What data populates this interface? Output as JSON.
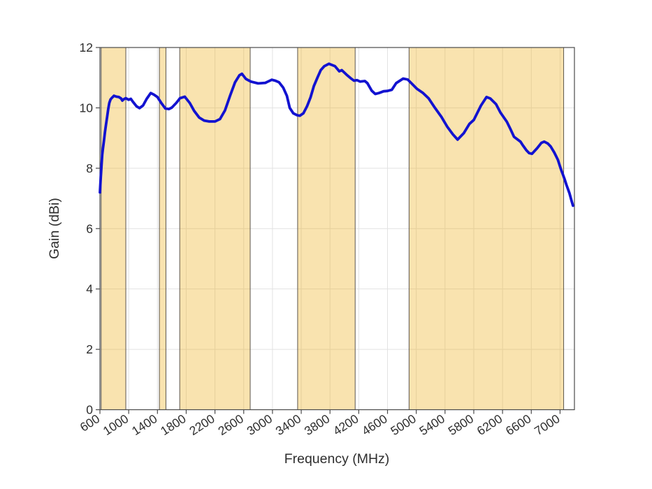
{
  "figure": {
    "xlabel": "Frequency (MHz)",
    "ylabel": "Gain (dBi)"
  },
  "chart_data": {
    "type": "line",
    "title": "",
    "xlabel": "Frequency (MHz)",
    "ylabel": "Gain (dBi)",
    "xlim": [
      600,
      7200
    ],
    "ylim": [
      0,
      12
    ],
    "x_ticks": [
      600,
      1000,
      1400,
      1800,
      2200,
      2600,
      3000,
      3400,
      3800,
      4200,
      4600,
      5000,
      5400,
      5800,
      6200,
      6600,
      7000
    ],
    "y_ticks": [
      0,
      2,
      4,
      6,
      8,
      10,
      12
    ],
    "x_tick_rotation_deg": -33,
    "grid": true,
    "legend": "none",
    "shaded_bands_mhz": [
      [
        617,
        960
      ],
      [
        1427,
        1518
      ],
      [
        1710,
        2690
      ],
      [
        3350,
        4150
      ],
      [
        4900,
        7050
      ]
    ],
    "series": [
      {
        "name": "gain",
        "points": [
          [
            600,
            7.2
          ],
          [
            612,
            7.7
          ],
          [
            622,
            8.1
          ],
          [
            632,
            8.45
          ],
          [
            642,
            8.65
          ],
          [
            655,
            8.9
          ],
          [
            670,
            9.2
          ],
          [
            685,
            9.45
          ],
          [
            700,
            9.7
          ],
          [
            715,
            9.95
          ],
          [
            730,
            10.16
          ],
          [
            748,
            10.28
          ],
          [
            765,
            10.33
          ],
          [
            795,
            10.4
          ],
          [
            830,
            10.37
          ],
          [
            862,
            10.36
          ],
          [
            895,
            10.31
          ],
          [
            912,
            10.24
          ],
          [
            928,
            10.28
          ],
          [
            960,
            10.32
          ],
          [
            1000,
            10.27
          ],
          [
            1030,
            10.3
          ],
          [
            1060,
            10.2
          ],
          [
            1110,
            10.05
          ],
          [
            1150,
            9.99
          ],
          [
            1200,
            10.08
          ],
          [
            1250,
            10.3
          ],
          [
            1307,
            10.49
          ],
          [
            1350,
            10.44
          ],
          [
            1400,
            10.36
          ],
          [
            1460,
            10.14
          ],
          [
            1510,
            9.98
          ],
          [
            1560,
            9.96
          ],
          [
            1600,
            10.01
          ],
          [
            1660,
            10.16
          ],
          [
            1714,
            10.32
          ],
          [
            1780,
            10.37
          ],
          [
            1850,
            10.16
          ],
          [
            1910,
            9.9
          ],
          [
            1980,
            9.68
          ],
          [
            2050,
            9.58
          ],
          [
            2120,
            9.55
          ],
          [
            2200,
            9.55
          ],
          [
            2270,
            9.63
          ],
          [
            2340,
            9.92
          ],
          [
            2410,
            10.4
          ],
          [
            2480,
            10.85
          ],
          [
            2540,
            11.08
          ],
          [
            2575,
            11.13
          ],
          [
            2630,
            10.96
          ],
          [
            2700,
            10.87
          ],
          [
            2800,
            10.81
          ],
          [
            2900,
            10.83
          ],
          [
            2990,
            10.93
          ],
          [
            3040,
            10.9
          ],
          [
            3090,
            10.85
          ],
          [
            3150,
            10.67
          ],
          [
            3200,
            10.4
          ],
          [
            3240,
            10.0
          ],
          [
            3290,
            9.82
          ],
          [
            3340,
            9.76
          ],
          [
            3380,
            9.74
          ],
          [
            3430,
            9.82
          ],
          [
            3480,
            10.05
          ],
          [
            3530,
            10.35
          ],
          [
            3575,
            10.72
          ],
          [
            3625,
            11.0
          ],
          [
            3672,
            11.25
          ],
          [
            3720,
            11.38
          ],
          [
            3785,
            11.46
          ],
          [
            3830,
            11.42
          ],
          [
            3870,
            11.38
          ],
          [
            3930,
            11.21
          ],
          [
            3963,
            11.25
          ],
          [
            4030,
            11.1
          ],
          [
            4090,
            10.98
          ],
          [
            4134,
            10.9
          ],
          [
            4175,
            10.92
          ],
          [
            4220,
            10.87
          ],
          [
            4285,
            10.89
          ],
          [
            4320,
            10.82
          ],
          [
            4380,
            10.57
          ],
          [
            4430,
            10.46
          ],
          [
            4480,
            10.49
          ],
          [
            4545,
            10.55
          ],
          [
            4600,
            10.56
          ],
          [
            4660,
            10.6
          ],
          [
            4720,
            10.82
          ],
          [
            4818,
            10.97
          ],
          [
            4880,
            10.94
          ],
          [
            4915,
            10.86
          ],
          [
            5010,
            10.63
          ],
          [
            5090,
            10.5
          ],
          [
            5170,
            10.32
          ],
          [
            5260,
            10.0
          ],
          [
            5350,
            9.7
          ],
          [
            5430,
            9.38
          ],
          [
            5510,
            9.12
          ],
          [
            5575,
            8.95
          ],
          [
            5660,
            9.16
          ],
          [
            5740,
            9.47
          ],
          [
            5800,
            9.6
          ],
          [
            5900,
            10.08
          ],
          [
            5977,
            10.36
          ],
          [
            6030,
            10.31
          ],
          [
            6110,
            10.12
          ],
          [
            6170,
            9.85
          ],
          [
            6260,
            9.54
          ],
          [
            6310,
            9.3
          ],
          [
            6360,
            9.04
          ],
          [
            6450,
            8.88
          ],
          [
            6480,
            8.77
          ],
          [
            6530,
            8.6
          ],
          [
            6570,
            8.5
          ],
          [
            6610,
            8.48
          ],
          [
            6680,
            8.66
          ],
          [
            6740,
            8.84
          ],
          [
            6780,
            8.88
          ],
          [
            6830,
            8.82
          ],
          [
            6870,
            8.72
          ],
          [
            6920,
            8.52
          ],
          [
            6970,
            8.28
          ],
          [
            7010,
            7.98
          ],
          [
            7060,
            7.66
          ],
          [
            7090,
            7.44
          ],
          [
            7130,
            7.18
          ],
          [
            7160,
            6.92
          ],
          [
            7180,
            6.76
          ]
        ]
      }
    ],
    "colors": {
      "curve": "#1212D0",
      "band_fill": "#EDB120",
      "band_edge": "#5C564E",
      "grid": "#E2E2E2",
      "axis": "#4A4A4A",
      "text": "#2E2E2E",
      "background": "#FFFFFF"
    },
    "style": {
      "band_fill_opacity": 0.36,
      "band_edge_width": 1,
      "curve_width": 3.8,
      "grid_width": 1,
      "tick_length": 6
    }
  }
}
